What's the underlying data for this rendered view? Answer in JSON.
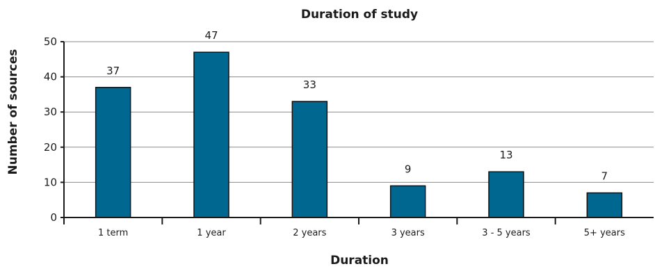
{
  "chart_data": {
    "type": "bar",
    "title": "Duration of study",
    "xlabel": "Duration",
    "ylabel": "Number of sources",
    "categories": [
      "1 term",
      "1 year",
      "2 years",
      "3 years",
      "3 - 5 years",
      "5+ years"
    ],
    "values": [
      37,
      47,
      33,
      9,
      13,
      7
    ],
    "data_labels": [
      "37",
      "47",
      "33",
      "9",
      "13",
      "7"
    ],
    "ylim": [
      0,
      50
    ],
    "yticks": [
      0,
      10,
      20,
      30,
      40,
      50
    ],
    "grid": true,
    "legend": "none",
    "bar_color": "#006791"
  }
}
